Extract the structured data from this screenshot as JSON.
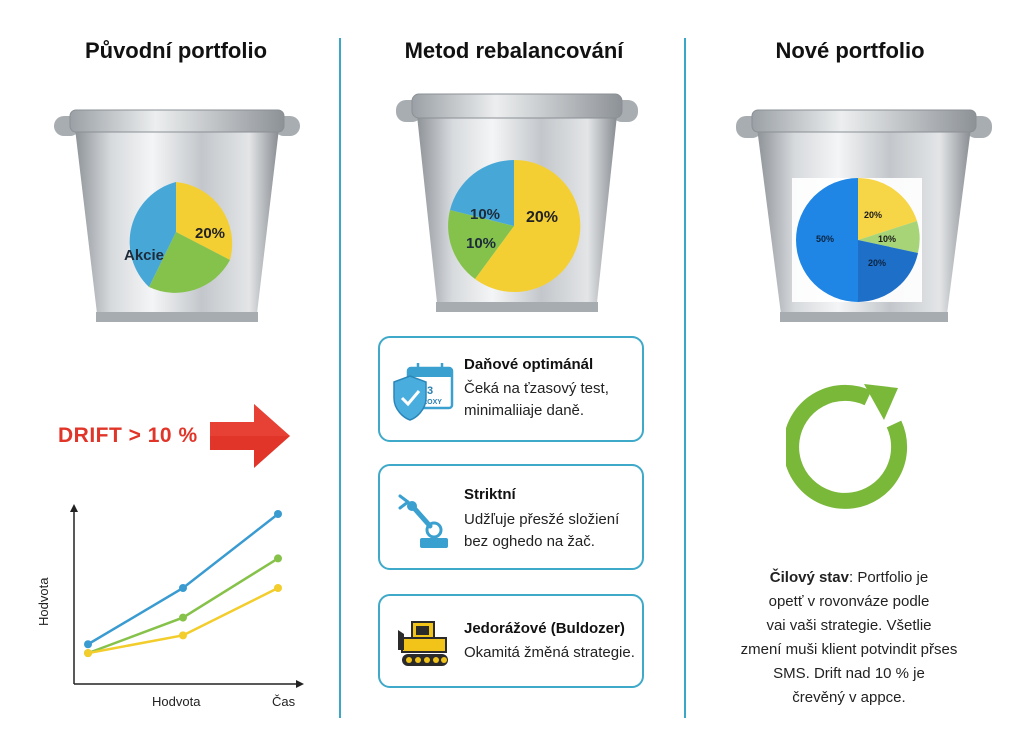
{
  "columns": {
    "original": {
      "title": "Původní portfolio"
    },
    "method": {
      "title": "Metod rebalancování"
    },
    "new": {
      "title": "Nové portfolio"
    }
  },
  "original_pie": {
    "label_big": "20%",
    "label_stocks": "Akcie"
  },
  "method_pie": {
    "label_a": "10%",
    "label_b": "10%",
    "label_c": "20%"
  },
  "new_pie": {
    "label_a": "20%",
    "label_b": "10%",
    "label_c": "20%",
    "label_d": "50%"
  },
  "drift": {
    "label": "DRIFT > 10 %"
  },
  "chart_data": {
    "type": "line",
    "title": "",
    "xlabel": "Hodvota",
    "ylabel": "Hodvota",
    "x_end_label": "Čas",
    "x": [
      0,
      1,
      2
    ],
    "series": [
      {
        "name": "blue",
        "color": "#3a9bd1",
        "values": [
          0.12,
          0.5,
          1.0
        ]
      },
      {
        "name": "green",
        "color": "#86c24a",
        "values": [
          0.06,
          0.3,
          0.7
        ]
      },
      {
        "name": "yellow",
        "color": "#f2cd2b",
        "values": [
          0.06,
          0.18,
          0.5
        ]
      }
    ]
  },
  "methods": [
    {
      "title": "Daňové optimánál",
      "desc1": "Čeká na ťzasový test,",
      "desc2": "minimaliiaje daně.",
      "icon_text": "3",
      "icon_sub": "ROXY"
    },
    {
      "title": "Striktní",
      "desc1": "Udžľuje přesžé složiení",
      "desc2": "bez oghedo na žač."
    },
    {
      "title": "Jedorážové (Buldozer)",
      "desc1": "Okamitá žměná strategie."
    }
  ],
  "goal": {
    "strong": "Čilový stav",
    "text1": ": Portfolio je",
    "line2": "opetť v rovonváze podle",
    "line3": "vai vaši strategie. Všetlie",
    "line4": "zmení muši klient potvindit přses",
    "line5": "SMS. Drift nad 10 % je",
    "line6": "črevěný v appce."
  },
  "colors": {
    "accent": "#3fa9c9",
    "drift_red": "#e03528",
    "cycle_green": "#7ab83a"
  }
}
